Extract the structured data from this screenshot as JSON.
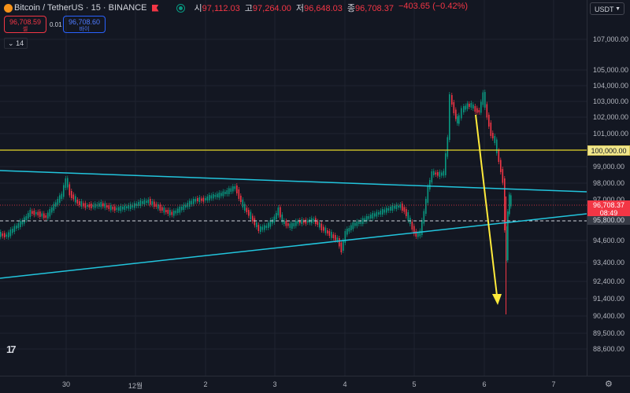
{
  "header": {
    "title": "Bitcoin / TetherUS · 15 · BINANCE",
    "ohlc": {
      "open_label": "시",
      "open": "97,112.03",
      "high_label": "고",
      "high": "97,264.00",
      "low_label": "저",
      "low": "96,648.03",
      "close_label": "종",
      "close": "96,708.37",
      "change": "−403.65 (−0.42%)"
    },
    "colors": {
      "down": "#f23645",
      "up": "#089981",
      "accent": "#2962ff"
    }
  },
  "trade": {
    "sell_price": "96,708.59",
    "sell_label": "셀",
    "spread": "0.01",
    "buy_price": "96,708.60",
    "buy_label": "바이"
  },
  "indicator_toggle": {
    "icon": "chevron-down-icon",
    "count": "14"
  },
  "currency": {
    "label": "USDT",
    "icon": "chevron-down-icon"
  },
  "price_axis": {
    "labels": [
      "107,000.00",
      "105,000.00",
      "104,000.00",
      "103,000.00",
      "102,000.00",
      "101,000.00",
      "99,000.00",
      "98,000.00",
      "97,000.00",
      "95,800.00",
      "94,600.00",
      "93,400.00",
      "92,400.00",
      "91,400.00",
      "90,400.00",
      "89,500.00",
      "88,600.00"
    ],
    "level_tag": "100,000.00",
    "last_price": "96,708.37",
    "countdown": "08:49",
    "dashed_level": "95,800.00"
  },
  "time_axis": {
    "labels": [
      "30",
      "12월",
      "2",
      "3",
      "4",
      "5",
      "6",
      "7"
    ]
  },
  "lines": {
    "horizontal_color": "#e6d72a",
    "trend_color": "#22c5dd",
    "arrow_color": "#ffeb3b"
  },
  "logo": "17"
}
